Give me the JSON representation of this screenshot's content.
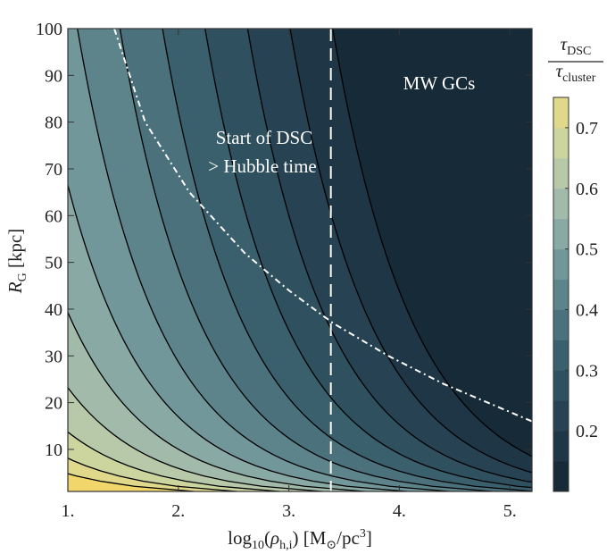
{
  "chart_data": {
    "type": "contour",
    "xlabel": "log10(ρh,i) [M⊙/pc3]",
    "ylabel": "RG [kpc]",
    "xlim": [
      1.0,
      5.2
    ],
    "ylim": [
      1,
      100
    ],
    "x_ticks": [
      "1.",
      "2.",
      "3.",
      "4.",
      "5."
    ],
    "x_tick_values": [
      1,
      2,
      3,
      4,
      5
    ],
    "y_ticks": [
      "10",
      "20",
      "30",
      "40",
      "50",
      "60",
      "70",
      "80",
      "90",
      "100"
    ],
    "y_tick_values": [
      10,
      20,
      30,
      40,
      50,
      60,
      70,
      80,
      90,
      100
    ],
    "colorbar": {
      "label_numerator": "τDSC",
      "label_denominator": "τcluster",
      "ticks": [
        "0.2",
        "0.3",
        "0.4",
        "0.5",
        "0.6",
        "0.7"
      ],
      "tick_values": [
        0.2,
        0.3,
        0.4,
        0.5,
        0.6,
        0.7
      ],
      "range": [
        0.1,
        0.75
      ],
      "levels": [
        0.1,
        0.15,
        0.2,
        0.25,
        0.3,
        0.35,
        0.4,
        0.45,
        0.5,
        0.55,
        0.6,
        0.65,
        0.7,
        0.75
      ],
      "colors": [
        "#172a38",
        "#1f3646",
        "#274353",
        "#2f505f",
        "#3a5f6d",
        "#4a717c",
        "#5d848b",
        "#71979a",
        "#89a9a4",
        "#a1baaa",
        "#b7c9a8",
        "#cdd59e",
        "#e0d88b",
        "#f0d66b"
      ]
    },
    "contour_lines_x_at_R10": [
      1.35,
      1.6,
      1.9,
      2.2,
      2.55,
      2.95,
      3.4,
      3.8,
      4.3,
      4.75,
      5.2
    ],
    "vertical_line": {
      "x": 3.38,
      "style": "dashed",
      "color": "#ffffff"
    },
    "hubble_curve": {
      "style": "dash-dot",
      "color": "#ffffff",
      "points": [
        [
          1.42,
          100
        ],
        [
          1.7,
          80
        ],
        [
          2.1,
          65
        ],
        [
          2.6,
          52
        ],
        [
          3.0,
          44
        ],
        [
          3.4,
          37
        ],
        [
          3.9,
          30
        ],
        [
          4.4,
          24
        ],
        [
          4.8,
          20
        ],
        [
          5.2,
          16
        ]
      ]
    },
    "annotations": {
      "dsc_line1": "Start of DSC",
      "dsc_line2": "> Hubble time",
      "mw": "MW GCs"
    }
  }
}
